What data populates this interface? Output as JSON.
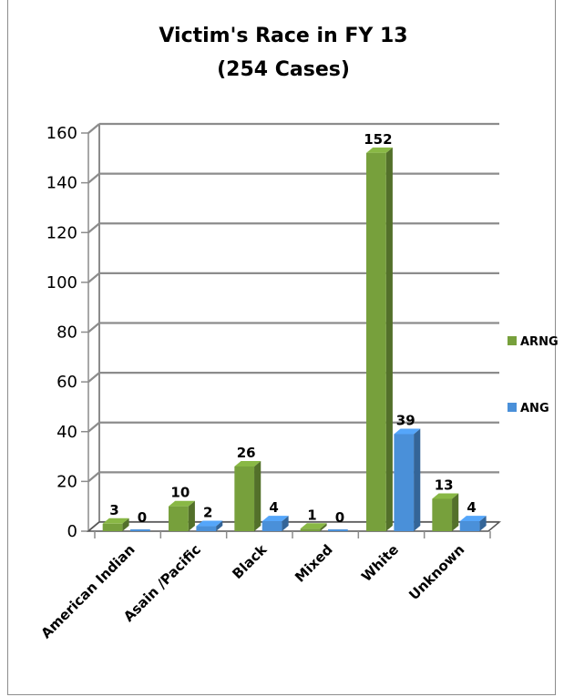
{
  "chart_data": {
    "type": "bar",
    "title": "Victim's Race in FY 13",
    "subtitle": "(254 Cases)",
    "categories": [
      "American Indian",
      "Asain /Pacific",
      "Black",
      "Mixed",
      "White",
      "Unknown"
    ],
    "series": [
      {
        "name": "ARNG",
        "values": [
          3,
          10,
          26,
          1,
          152,
          13
        ],
        "color": "#77A03C"
      },
      {
        "name": "ANG",
        "values": [
          0,
          2,
          4,
          0,
          39,
          4
        ],
        "color": "#4A90D9"
      }
    ],
    "ylim": [
      0,
      160
    ],
    "y_ticks": [
      "0",
      "20",
      "40",
      "60",
      "80",
      "100",
      "120",
      "140",
      "160"
    ],
    "grid": true,
    "legend_position": "right",
    "style": "3d-clustered-column"
  }
}
